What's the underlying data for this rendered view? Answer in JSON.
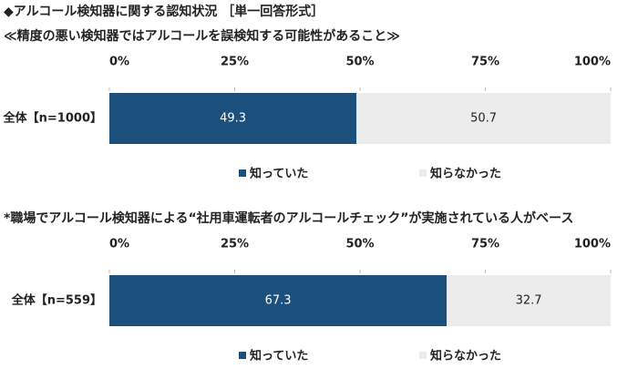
{
  "header": {
    "title": "◆アルコール検知器に関する認知状況 ［単一回答形式］",
    "subtitle": "≪精度の悪い検知器ではアルコールを誤検知する可能性があること≫"
  },
  "chart_data": [
    {
      "type": "stacked-bar",
      "categories": [
        "全体【n=1000】"
      ],
      "series": [
        {
          "name": "知っていた",
          "color": "#1b4f7c",
          "values": [
            49.3
          ]
        },
        {
          "name": "知らなかった",
          "color": "#ececec",
          "values": [
            50.7
          ]
        }
      ],
      "xlim": [
        0,
        100
      ],
      "xticks": [
        {
          "value": 0,
          "label": "0%"
        },
        {
          "value": 25,
          "label": "25%"
        },
        {
          "value": 50,
          "label": "50%"
        },
        {
          "value": 75,
          "label": "75%"
        },
        {
          "value": 100,
          "label": "100%"
        }
      ]
    },
    {
      "type": "stacked-bar",
      "note": "*職場でアルコール検知器による“社用車運転者のアルコールチェック”が実施されている人がベース",
      "categories": [
        "全体【n=559】"
      ],
      "series": [
        {
          "name": "知っていた",
          "color": "#1b4f7c",
          "values": [
            67.3
          ]
        },
        {
          "name": "知らなかった",
          "color": "#ececec",
          "values": [
            32.7
          ]
        }
      ],
      "xlim": [
        0,
        100
      ],
      "xticks": [
        {
          "value": 0,
          "label": "0%"
        },
        {
          "value": 25,
          "label": "25%"
        },
        {
          "value": 50,
          "label": "50%"
        },
        {
          "value": 75,
          "label": "75%"
        },
        {
          "value": 100,
          "label": "100%"
        }
      ]
    }
  ]
}
